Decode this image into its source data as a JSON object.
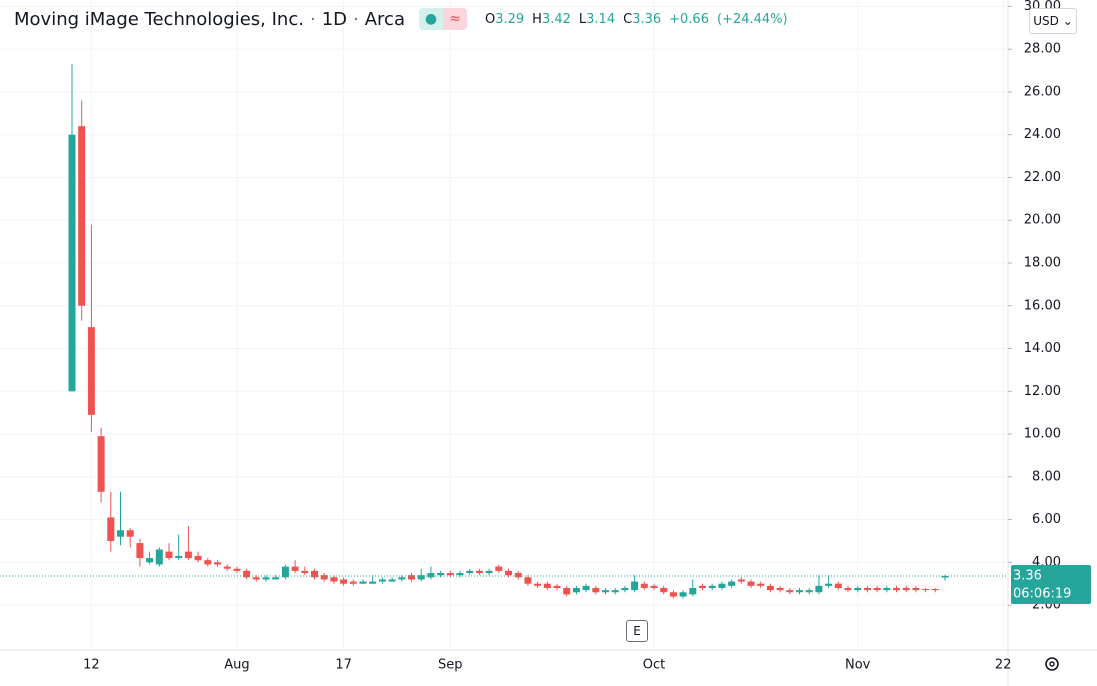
{
  "chart_data": {
    "type": "candlestick",
    "title": "Moving iMage Technologies, Inc.",
    "interval": "1D",
    "exchange": "Arca",
    "currency": "USD",
    "legend": [
      {
        "label": "O",
        "value": "3.29"
      },
      {
        "label": "H",
        "value": "3.42"
      },
      {
        "label": "L",
        "value": "3.14"
      },
      {
        "label": "C",
        "value": "3.36"
      }
    ],
    "change": "+0.66",
    "change_percent": "(+24.44%)",
    "last_price": 3.36,
    "last_price_label": "3.36",
    "countdown": "06:06:19",
    "earnings_label": "E",
    "up_color": "#26a69a",
    "down_color": "#ef5350",
    "grid": true,
    "ylim": [
      -0.1,
      30.3
    ],
    "yticks": [
      {
        "value": 2,
        "label": "2.00"
      },
      {
        "value": 4,
        "label": "4.00"
      },
      {
        "value": 6,
        "label": "6.00"
      },
      {
        "value": 8,
        "label": "8.00"
      },
      {
        "value": 10,
        "label": "10.00"
      },
      {
        "value": 12,
        "label": "12.00"
      },
      {
        "value": 14,
        "label": "14.00"
      },
      {
        "value": 16,
        "label": "16.00"
      },
      {
        "value": 18,
        "label": "18.00"
      },
      {
        "value": 20,
        "label": "20.00"
      },
      {
        "value": 22,
        "label": "22.00"
      },
      {
        "value": 24,
        "label": "24.00"
      },
      {
        "value": 26,
        "label": "26.00"
      },
      {
        "value": 28,
        "label": "28.00"
      },
      {
        "value": 30,
        "label": "30.00"
      }
    ],
    "categories": [
      null,
      null,
      "12",
      null,
      null,
      null,
      null,
      null,
      null,
      null,
      null,
      null,
      null,
      null,
      null,
      null,
      null,
      "Aug",
      null,
      null,
      null,
      null,
      null,
      null,
      null,
      null,
      null,
      null,
      "17",
      null,
      null,
      null,
      null,
      null,
      null,
      null,
      null,
      null,
      null,
      "Sep",
      null,
      null,
      null,
      null,
      null,
      null,
      null,
      null,
      null,
      null,
      null,
      null,
      null,
      null,
      null,
      null,
      null,
      null,
      null,
      null,
      "Oct",
      null,
      null,
      null,
      null,
      null,
      null,
      null,
      null,
      null,
      null,
      null,
      null,
      null,
      null,
      null,
      null,
      null,
      null,
      null,
      null,
      "Nov",
      null,
      null,
      null,
      null,
      null,
      null,
      null,
      null,
      null,
      null,
      null,
      null,
      null,
      null,
      "22"
    ],
    "open": [
      12.0,
      24.4,
      15.0,
      9.9,
      6.1,
      5.2,
      5.5,
      4.9,
      4.0,
      3.9,
      4.5,
      4.2,
      4.5,
      4.3,
      4.1,
      4.0,
      3.8,
      3.7,
      3.6,
      3.3,
      3.2,
      3.2,
      3.3,
      3.8,
      3.6,
      3.6,
      3.4,
      3.3,
      3.2,
      3.1,
      3.0,
      3.0,
      3.1,
      3.1,
      3.2,
      3.4,
      3.2,
      3.3,
      3.4,
      3.5,
      3.4,
      3.5,
      3.6,
      3.5,
      3.8,
      3.6,
      3.5,
      3.3,
      3.0,
      3.0,
      2.9,
      2.8,
      2.6,
      2.7,
      2.8,
      2.6,
      2.6,
      2.7,
      2.7,
      3.0,
      2.9,
      2.8,
      2.6,
      2.4,
      2.5,
      2.9,
      2.8,
      2.8,
      2.9,
      3.2,
      3.1,
      3.0,
      2.9,
      2.8,
      2.7,
      2.6,
      2.6,
      2.6,
      2.9,
      3.0,
      2.8,
      2.7,
      2.8,
      2.8,
      2.7,
      2.8,
      2.8,
      2.8,
      2.75,
      2.75,
      3.29,
      null,
      null,
      null,
      null,
      null,
      null
    ],
    "high": [
      27.3,
      25.6,
      19.8,
      10.3,
      7.3,
      7.3,
      5.6,
      5.1,
      4.5,
      4.7,
      4.9,
      5.3,
      5.7,
      4.5,
      4.2,
      4.1,
      3.9,
      3.8,
      3.7,
      3.4,
      3.4,
      3.4,
      3.9,
      4.1,
      3.8,
      3.7,
      3.5,
      3.4,
      3.3,
      3.2,
      3.2,
      3.4,
      3.3,
      3.3,
      3.4,
      3.5,
      3.7,
      3.8,
      3.6,
      3.6,
      3.6,
      3.7,
      3.7,
      3.7,
      3.9,
      3.7,
      3.6,
      3.4,
      3.1,
      3.1,
      3.0,
      2.9,
      2.9,
      3.0,
      2.9,
      2.8,
      2.8,
      2.9,
      3.4,
      3.1,
      3.0,
      2.9,
      2.7,
      2.7,
      3.2,
      3.0,
      3.0,
      3.1,
      3.2,
      3.3,
      3.2,
      3.1,
      3.0,
      2.9,
      2.8,
      2.8,
      2.8,
      3.4,
      3.4,
      3.1,
      2.9,
      2.9,
      2.9,
      2.9,
      2.9,
      2.9,
      2.9,
      2.9,
      2.8,
      2.8,
      3.42,
      null,
      null,
      null,
      null,
      null,
      null
    ],
    "low": [
      12.0,
      15.3,
      10.1,
      6.8,
      4.5,
      4.8,
      4.7,
      3.8,
      3.9,
      3.8,
      4.1,
      4.1,
      4.1,
      4.0,
      3.8,
      3.8,
      3.6,
      3.5,
      3.2,
      3.1,
      3.1,
      3.2,
      3.2,
      3.5,
      3.4,
      3.2,
      3.1,
      3.0,
      2.9,
      2.9,
      3.0,
      3.0,
      3.0,
      3.1,
      3.1,
      3.1,
      3.1,
      3.2,
      3.3,
      3.3,
      3.3,
      3.4,
      3.4,
      3.4,
      3.5,
      3.3,
      3.2,
      2.9,
      2.8,
      2.7,
      2.7,
      2.4,
      2.5,
      2.6,
      2.5,
      2.5,
      2.5,
      2.6,
      2.6,
      2.7,
      2.7,
      2.5,
      2.3,
      2.3,
      2.4,
      2.7,
      2.7,
      2.7,
      2.8,
      3.0,
      2.8,
      2.8,
      2.6,
      2.6,
      2.5,
      2.5,
      2.5,
      2.5,
      2.8,
      2.7,
      2.6,
      2.6,
      2.6,
      2.6,
      2.6,
      2.6,
      2.6,
      2.6,
      2.6,
      2.6,
      3.14,
      null,
      null,
      null,
      null,
      null,
      null
    ],
    "close": [
      24.0,
      16.0,
      10.9,
      7.3,
      5.0,
      5.5,
      5.2,
      4.2,
      4.2,
      4.6,
      4.2,
      4.3,
      4.2,
      4.1,
      3.9,
      3.9,
      3.7,
      3.6,
      3.3,
      3.2,
      3.3,
      3.3,
      3.8,
      3.6,
      3.5,
      3.3,
      3.2,
      3.1,
      3.0,
      3.0,
      3.1,
      3.1,
      3.2,
      3.2,
      3.3,
      3.2,
      3.4,
      3.5,
      3.5,
      3.4,
      3.5,
      3.6,
      3.5,
      3.6,
      3.6,
      3.4,
      3.3,
      3.0,
      2.9,
      2.8,
      2.8,
      2.5,
      2.8,
      2.9,
      2.6,
      2.7,
      2.7,
      2.8,
      3.1,
      2.8,
      2.8,
      2.6,
      2.4,
      2.6,
      2.8,
      2.8,
      2.9,
      3.0,
      3.1,
      3.1,
      2.9,
      2.9,
      2.7,
      2.7,
      2.6,
      2.7,
      2.7,
      2.9,
      3.0,
      2.8,
      2.7,
      2.8,
      2.7,
      2.7,
      2.8,
      2.7,
      2.7,
      2.7,
      2.7,
      2.7,
      3.36,
      null,
      null,
      null,
      null,
      null,
      null
    ]
  }
}
